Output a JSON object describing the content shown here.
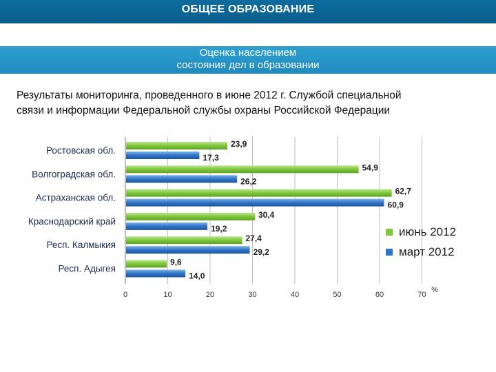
{
  "header": {
    "title": "ОБЩЕЕ ОБРАЗОВАНИЕ",
    "subtitle_line1": "Оценка населением",
    "subtitle_line2": "состояния дел в образовании"
  },
  "description": {
    "line1": "Результаты мониторинга, проведенного в июне 2012 г. Службой специальной",
    "line2": "связи и информации Федеральной службы охраны Российской Федерации"
  },
  "colors": {
    "june": "#7fc63a",
    "march": "#2f74c7",
    "header_band": "#0e6c9f",
    "sub_band": "#2797cb"
  },
  "chart_data": {
    "type": "bar",
    "orientation": "horizontal",
    "categories": [
      "Ростовская обл.",
      "Волгоградская обл.",
      "Астраханская обл.",
      "Краснодарский край",
      "Респ. Калмыкия",
      "Респ. Адыгея"
    ],
    "series": [
      {
        "name": "июнь 2012",
        "values": [
          23.9,
          54.9,
          62.7,
          30.4,
          27.4,
          9.6
        ],
        "labels": [
          "23,9",
          "54,9",
          "62,7",
          "30,4",
          "27,4",
          "9,6"
        ]
      },
      {
        "name": "март 2012",
        "values": [
          17.3,
          26.2,
          60.9,
          19.2,
          29.2,
          14.0
        ],
        "labels": [
          "17,3",
          "26,2",
          "60,9",
          "19,2",
          "29,2",
          "14,0"
        ]
      }
    ],
    "xlim": [
      0,
      70
    ],
    "xticks": [
      0,
      10,
      20,
      30,
      40,
      50,
      60,
      70
    ],
    "xtick_labels": [
      "0",
      "10",
      "20",
      "30",
      "40",
      "50",
      "60",
      "70"
    ],
    "xunit": "%",
    "grid": true,
    "legend": "right"
  }
}
